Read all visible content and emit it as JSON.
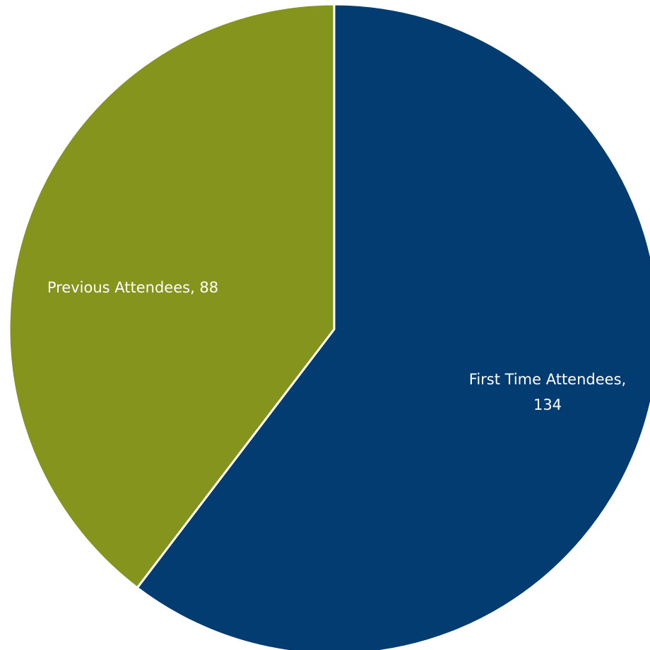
{
  "chart_data": {
    "type": "pie",
    "title": "",
    "slices": [
      {
        "name": "First Time Attendees",
        "value": 134,
        "color": "#023c70",
        "label_lines": [
          "First Time Attendees,",
          "134"
        ]
      },
      {
        "name": "Previous Attendees",
        "value": 88,
        "color": "#85941c",
        "label_lines": [
          "Previous Attendees, 88"
        ]
      }
    ],
    "start_angle_deg": 0,
    "direction": "clockwise",
    "legend": "none",
    "separator_color": "#ffffff"
  }
}
